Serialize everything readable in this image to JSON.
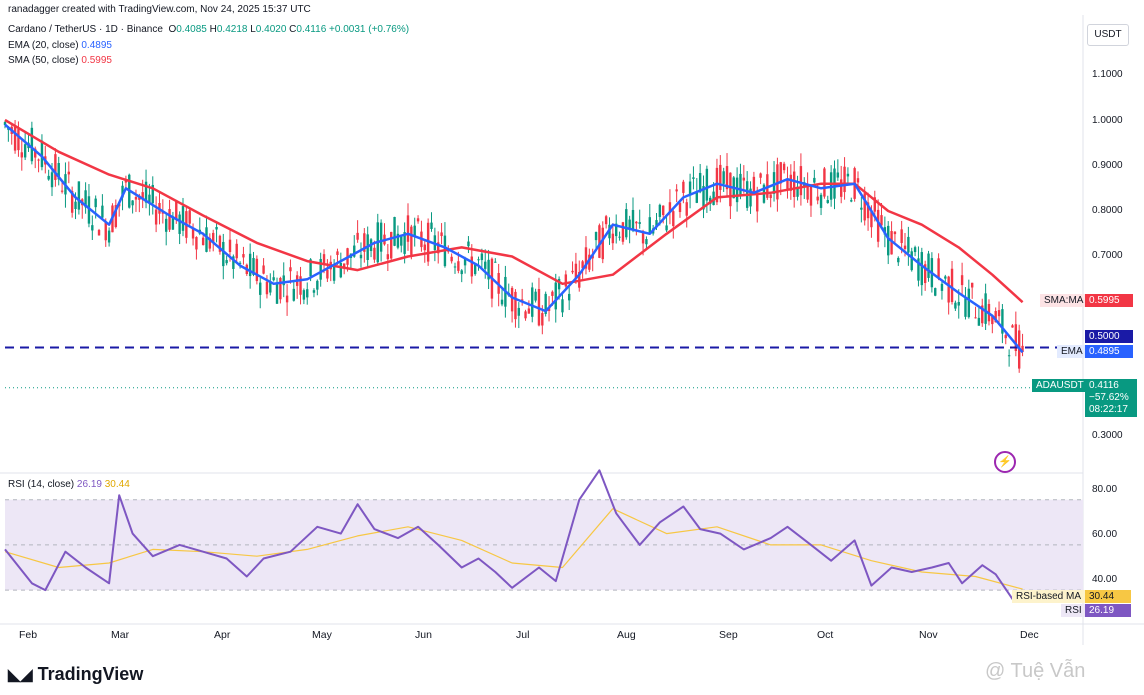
{
  "header": {
    "created": "ranadagger created with TradingView.com, Nov 24, 2025 15:37 UTC",
    "symbol_line": "Cardano / TetherUS · 1D · Binance",
    "o_label": "O",
    "o_val": "0.4085",
    "h_label": "H",
    "h_val": "0.4218",
    "l_label": "L",
    "l_val": "0.4020",
    "c_label": "C",
    "c_val": "0.4116",
    "change": "+0.0031 (+0.76%)",
    "ema_label": "EMA (20, close)",
    "ema_val": "0.4895",
    "sma_label": "SMA (50, close)",
    "sma_val": "0.5995",
    "rsi_label": "RSI (14, close)",
    "rsi_val": "26.19",
    "rsi_ma_val": "30.44"
  },
  "currency": "USDT",
  "price_axis": [
    "1.1000",
    "1.0000",
    "0.9000",
    "0.8000",
    "0.7000",
    "0.3000"
  ],
  "rsi_axis": [
    "80.00",
    "60.00",
    "40.00"
  ],
  "time_axis": [
    "Feb",
    "Mar",
    "Apr",
    "May",
    "Jun",
    "Jul",
    "Aug",
    "Sep",
    "Oct",
    "Nov",
    "Dec"
  ],
  "tags": {
    "sma_name": "SMA:MA",
    "sma_val": "0.5995",
    "level_val": "0.5000",
    "ema_name": "EMA",
    "ema_val": "0.4895",
    "ticker": "ADAUSDT",
    "ticker_val": "0.4116",
    "ticker_pct": "−57.62%",
    "ticker_time": "08:22:17",
    "rsi_ma_name": "RSI-based MA",
    "rsi_ma_val": "30.44",
    "rsi_name": "RSI",
    "rsi_val": "26.19"
  },
  "branding": {
    "logo_text": "TradingView",
    "watermark": "@ Tuệ Vẫn"
  },
  "colors": {
    "up": "#089981",
    "down": "#f23645",
    "ema": "#2962ff",
    "sma": "#f23645",
    "level": "#1a1aa6",
    "rsi": "#7e57c2",
    "rsi_ma": "#f7c744",
    "rsi_band": "#ede7f6"
  },
  "chart_data": [
    {
      "type": "candlestick",
      "title": "Cardano / TetherUS · 1D · Binance",
      "y_range": [
        0.25,
        1.2
      ],
      "horizontal_level": 0.5,
      "series": [
        {
          "name": "EMA (20, close)",
          "points": [
            [
              "2025-01-25",
              0.99
            ],
            [
              "2025-02-05",
              0.92
            ],
            [
              "2025-02-15",
              0.83
            ],
            [
              "2025-02-25",
              0.77
            ],
            [
              "2025-03-02",
              0.85
            ],
            [
              "2025-03-15",
              0.79
            ],
            [
              "2025-03-25",
              0.75
            ],
            [
              "2025-04-05",
              0.68
            ],
            [
              "2025-04-15",
              0.64
            ],
            [
              "2025-04-25",
              0.65
            ],
            [
              "2025-05-05",
              0.69
            ],
            [
              "2025-05-15",
              0.73
            ],
            [
              "2025-05-25",
              0.75
            ],
            [
              "2025-06-05",
              0.72
            ],
            [
              "2025-06-15",
              0.68
            ],
            [
              "2025-06-25",
              0.61
            ],
            [
              "2025-07-05",
              0.58
            ],
            [
              "2025-07-15",
              0.66
            ],
            [
              "2025-07-25",
              0.77
            ],
            [
              "2025-08-05",
              0.75
            ],
            [
              "2025-08-15",
              0.83
            ],
            [
              "2025-08-25",
              0.86
            ],
            [
              "2025-09-05",
              0.84
            ],
            [
              "2025-09-15",
              0.87
            ],
            [
              "2025-09-25",
              0.85
            ],
            [
              "2025-10-05",
              0.86
            ],
            [
              "2025-10-15",
              0.74
            ],
            [
              "2025-10-25",
              0.68
            ],
            [
              "2025-11-05",
              0.62
            ],
            [
              "2025-11-15",
              0.57
            ],
            [
              "2025-11-24",
              0.4895
            ]
          ]
        },
        {
          "name": "SMA (50, close)",
          "points": [
            [
              "2025-01-25",
              1.0
            ],
            [
              "2025-02-10",
              0.93
            ],
            [
              "2025-02-25",
              0.88
            ],
            [
              "2025-03-10",
              0.85
            ],
            [
              "2025-03-25",
              0.79
            ],
            [
              "2025-04-10",
              0.73
            ],
            [
              "2025-04-25",
              0.69
            ],
            [
              "2025-05-10",
              0.67
            ],
            [
              "2025-05-25",
              0.7
            ],
            [
              "2025-06-10",
              0.72
            ],
            [
              "2025-06-25",
              0.7
            ],
            [
              "2025-07-10",
              0.64
            ],
            [
              "2025-07-25",
              0.66
            ],
            [
              "2025-08-10",
              0.75
            ],
            [
              "2025-08-25",
              0.83
            ],
            [
              "2025-09-10",
              0.84
            ],
            [
              "2025-09-25",
              0.86
            ],
            [
              "2025-10-05",
              0.86
            ],
            [
              "2025-10-15",
              0.8
            ],
            [
              "2025-10-25",
              0.77
            ],
            [
              "2025-11-05",
              0.72
            ],
            [
              "2025-11-15",
              0.66
            ],
            [
              "2025-11-24",
              0.5995
            ]
          ]
        }
      ],
      "last": {
        "open": 0.4085,
        "high": 0.4218,
        "low": 0.402,
        "close": 0.4116
      }
    },
    {
      "type": "line",
      "title": "RSI (14, close)",
      "y_range": [
        20,
        85
      ],
      "band": [
        30,
        70
      ],
      "midline": 50,
      "series": [
        {
          "name": "RSI",
          "points": [
            [
              "2025-01-25",
              48
            ],
            [
              "2025-02-02",
              33
            ],
            [
              "2025-02-06",
              30
            ],
            [
              "2025-02-12",
              47
            ],
            [
              "2025-02-18",
              40
            ],
            [
              "2025-02-25",
              33
            ],
            [
              "2025-02-28",
              72
            ],
            [
              "2025-03-04",
              55
            ],
            [
              "2025-03-10",
              45
            ],
            [
              "2025-03-18",
              50
            ],
            [
              "2025-03-25",
              47
            ],
            [
              "2025-04-01",
              44
            ],
            [
              "2025-04-07",
              36
            ],
            [
              "2025-04-12",
              44
            ],
            [
              "2025-04-20",
              47
            ],
            [
              "2025-04-28",
              58
            ],
            [
              "2025-05-05",
              55
            ],
            [
              "2025-05-10",
              68
            ],
            [
              "2025-05-15",
              57
            ],
            [
              "2025-05-22",
              53
            ],
            [
              "2025-05-28",
              58
            ],
            [
              "2025-06-03",
              50
            ],
            [
              "2025-06-10",
              40
            ],
            [
              "2025-06-15",
              44
            ],
            [
              "2025-06-20",
              38
            ],
            [
              "2025-06-25",
              31
            ],
            [
              "2025-07-03",
              40
            ],
            [
              "2025-07-08",
              34
            ],
            [
              "2025-07-15",
              70
            ],
            [
              "2025-07-21",
              83
            ],
            [
              "2025-07-26",
              64
            ],
            [
              "2025-08-02",
              50
            ],
            [
              "2025-08-08",
              60
            ],
            [
              "2025-08-15",
              67
            ],
            [
              "2025-08-20",
              57
            ],
            [
              "2025-08-26",
              55
            ],
            [
              "2025-09-02",
              48
            ],
            [
              "2025-09-10",
              53
            ],
            [
              "2025-09-15",
              58
            ],
            [
              "2025-09-22",
              50
            ],
            [
              "2025-09-28",
              43
            ],
            [
              "2025-10-05",
              52
            ],
            [
              "2025-10-10",
              32
            ],
            [
              "2025-10-16",
              40
            ],
            [
              "2025-10-22",
              38
            ],
            [
              "2025-10-28",
              40
            ],
            [
              "2025-11-02",
              42
            ],
            [
              "2025-11-06",
              33
            ],
            [
              "2025-11-12",
              41
            ],
            [
              "2025-11-16",
              37
            ],
            [
              "2025-11-21",
              26
            ],
            [
              "2025-11-24",
              26.19
            ]
          ]
        },
        {
          "name": "RSI-based MA",
          "points": [
            [
              "2025-01-25",
              47
            ],
            [
              "2025-02-10",
              40
            ],
            [
              "2025-02-25",
              42
            ],
            [
              "2025-03-10",
              48
            ],
            [
              "2025-03-25",
              47
            ],
            [
              "2025-04-10",
              45
            ],
            [
              "2025-04-25",
              48
            ],
            [
              "2025-05-10",
              54
            ],
            [
              "2025-05-25",
              58
            ],
            [
              "2025-06-10",
              52
            ],
            [
              "2025-06-25",
              42
            ],
            [
              "2025-07-10",
              40
            ],
            [
              "2025-07-25",
              66
            ],
            [
              "2025-08-10",
              55
            ],
            [
              "2025-08-25",
              58
            ],
            [
              "2025-09-10",
              50
            ],
            [
              "2025-09-25",
              50
            ],
            [
              "2025-10-10",
              43
            ],
            [
              "2025-10-25",
              38
            ],
            [
              "2025-11-10",
              36
            ],
            [
              "2025-11-24",
              30.44
            ]
          ]
        }
      ]
    }
  ]
}
